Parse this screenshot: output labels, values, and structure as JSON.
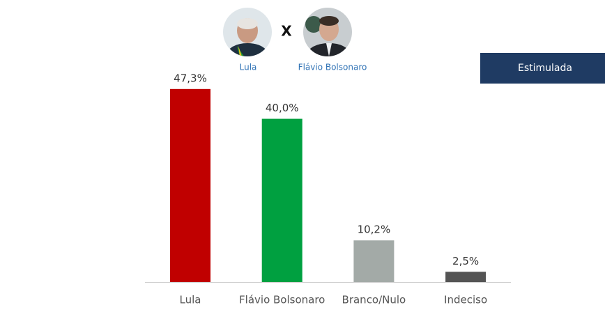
{
  "header": {
    "candidate_a": "Lula",
    "versus": "X",
    "candidate_b": "Flávio Bolsonaro",
    "button": "Estimulada"
  },
  "chart_data": {
    "type": "bar",
    "categories": [
      "Lula",
      "Flávio Bolsonaro",
      "Branco/Nulo",
      "Indeciso"
    ],
    "values": [
      47.3,
      40.0,
      10.2,
      2.5
    ],
    "value_labels": [
      "47,3%",
      "40,0%",
      "10,2%",
      "2,5%"
    ],
    "colors": [
      "#c00000",
      "#00a040",
      "#a3aaa7",
      "#545454"
    ]
  }
}
